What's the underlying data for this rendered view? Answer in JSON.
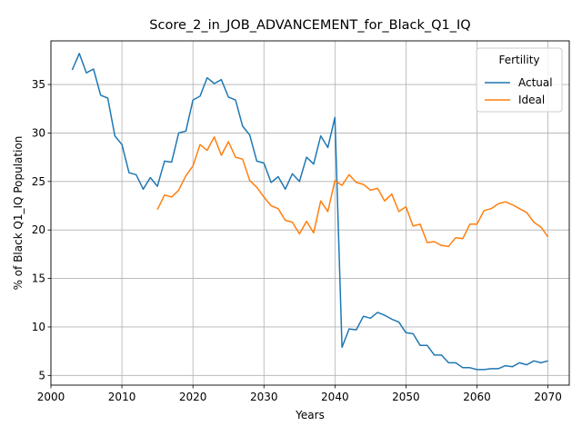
{
  "chart_data": {
    "type": "line",
    "title": "Score_2_in_JOB_ADVANCEMENT_for_Black_Q1_IQ",
    "xlabel": "Years",
    "ylabel": "% of Black Q1_IQ Population",
    "xlim": [
      2000,
      2073
    ],
    "ylim": [
      4.0,
      39.5
    ],
    "xticks": [
      2000,
      2010,
      2020,
      2030,
      2040,
      2050,
      2060,
      2070
    ],
    "yticks": [
      5,
      10,
      15,
      20,
      25,
      30,
      35
    ],
    "grid": true,
    "legend": {
      "title": "Fertility",
      "placement": "top-right"
    },
    "series": [
      {
        "name": "Actual",
        "color": "#1f77b4",
        "x": [
          2003,
          2004,
          2005,
          2006,
          2007,
          2008,
          2009,
          2010,
          2011,
          2012,
          2013,
          2014,
          2015,
          2016,
          2017,
          2018,
          2019,
          2020,
          2021,
          2022,
          2023,
          2024,
          2025,
          2026,
          2027,
          2028,
          2029,
          2030,
          2031,
          2032,
          2033,
          2034,
          2035,
          2036,
          2037,
          2038,
          2039,
          2040,
          2041,
          2042,
          2043,
          2044,
          2045,
          2046,
          2047,
          2048,
          2049,
          2050,
          2051,
          2052,
          2053,
          2054,
          2055,
          2056,
          2057,
          2058,
          2059,
          2060,
          2061,
          2062,
          2063,
          2064,
          2065,
          2066,
          2067,
          2068,
          2069,
          2070
        ],
        "y": [
          36.5,
          38.2,
          36.2,
          36.6,
          33.9,
          33.6,
          29.7,
          28.8,
          25.9,
          25.7,
          24.2,
          25.4,
          24.5,
          27.1,
          27.0,
          30.0,
          30.2,
          33.4,
          33.8,
          35.7,
          35.1,
          35.5,
          33.7,
          33.4,
          30.7,
          29.8,
          27.1,
          26.9,
          24.9,
          25.5,
          24.2,
          25.8,
          25.0,
          27.5,
          26.8,
          29.7,
          28.5,
          31.6,
          7.9,
          9.8,
          9.7,
          11.1,
          10.9,
          11.5,
          11.2,
          10.8,
          10.5,
          9.4,
          9.3,
          8.1,
          8.1,
          7.1,
          7.1,
          6.3,
          6.3,
          5.8,
          5.8,
          5.6,
          5.6,
          5.7,
          5.7,
          6.0,
          5.9,
          6.3,
          6.1,
          6.5,
          6.3,
          6.5
        ]
      },
      {
        "name": "Ideal",
        "color": "#ff7f0e",
        "x": [
          2015,
          2016,
          2017,
          2018,
          2019,
          2020,
          2021,
          2022,
          2023,
          2024,
          2025,
          2026,
          2027,
          2028,
          2029,
          2030,
          2031,
          2032,
          2033,
          2034,
          2035,
          2036,
          2037,
          2038,
          2039,
          2040,
          2041,
          2042,
          2043,
          2044,
          2045,
          2046,
          2047,
          2048,
          2049,
          2050,
          2051,
          2052,
          2053,
          2054,
          2055,
          2056,
          2057,
          2058,
          2059,
          2060,
          2061,
          2062,
          2063,
          2064,
          2065,
          2066,
          2067,
          2068,
          2069,
          2070
        ],
        "y": [
          22.1,
          23.6,
          23.4,
          24.1,
          25.6,
          26.6,
          28.8,
          28.2,
          29.6,
          27.7,
          29.1,
          27.5,
          27.3,
          25.1,
          24.4,
          23.4,
          22.5,
          22.2,
          21.0,
          20.8,
          19.6,
          20.9,
          19.7,
          23.0,
          21.9,
          25.1,
          24.6,
          25.7,
          24.9,
          24.7,
          24.1,
          24.3,
          23.0,
          23.7,
          21.9,
          22.4,
          20.4,
          20.6,
          18.7,
          18.8,
          18.4,
          18.3,
          19.2,
          19.1,
          20.6,
          20.6,
          22.0,
          22.2,
          22.7,
          22.9,
          22.6,
          22.2,
          21.8,
          20.8,
          20.3,
          19.3
        ]
      }
    ]
  }
}
